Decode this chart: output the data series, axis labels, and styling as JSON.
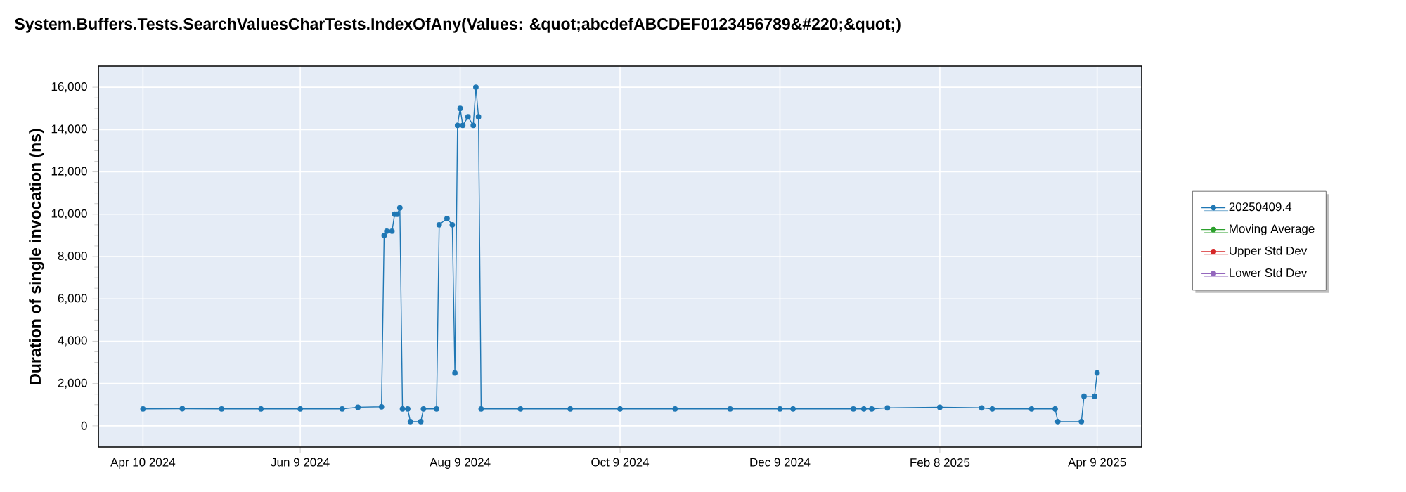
{
  "chart_data": {
    "type": "line",
    "title": "System.Buffers.Tests.SearchValuesCharTests.IndexOfAny(Values: &quot;abcdefABCDEF0123456789&#220;&quot;)",
    "ylabel": "Duration of single invocation (ns)",
    "xlim": [
      "2024-03-24",
      "2025-04-26"
    ],
    "ylim": [
      -1000,
      17000
    ],
    "xticks": [
      {
        "value": "2024-04-10",
        "label": "Apr 10 2024"
      },
      {
        "value": "2024-06-09",
        "label": "Jun 9 2024"
      },
      {
        "value": "2024-08-09",
        "label": "Aug 9 2024"
      },
      {
        "value": "2024-10-09",
        "label": "Oct 9 2024"
      },
      {
        "value": "2024-12-09",
        "label": "Dec 9 2024"
      },
      {
        "value": "2025-02-08",
        "label": "Feb 8 2025"
      },
      {
        "value": "2025-04-09",
        "label": "Apr 9 2025"
      }
    ],
    "yticks": [
      0,
      {
        "value": 2000,
        "label": "2,000"
      },
      {
        "value": 4000,
        "label": "4,000"
      },
      {
        "value": 6000,
        "label": "6,000"
      },
      {
        "value": 8000,
        "label": "8,000"
      },
      {
        "value": 10000,
        "label": "10,000"
      },
      {
        "value": 12000,
        "label": "12,000"
      },
      {
        "value": 14000,
        "label": "14,000"
      },
      {
        "value": 16000,
        "label": "16,000"
      }
    ],
    "grid": true,
    "legend": "right",
    "marker": "circle",
    "line_style": "solid",
    "series": [
      {
        "name": "20250409.4",
        "color": "#1f77b4",
        "x": [
          "2024-04-10",
          "2024-04-25",
          "2024-05-10",
          "2024-05-25",
          "2024-06-09",
          "2024-06-25",
          "2024-07-01",
          "2024-07-10",
          "2024-07-11",
          "2024-07-12",
          "2024-07-14",
          "2024-07-15",
          "2024-07-16",
          "2024-07-17",
          "2024-07-18",
          "2024-07-20",
          "2024-07-21",
          "2024-07-25",
          "2024-07-26",
          "2024-07-31",
          "2024-08-01",
          "2024-08-04",
          "2024-08-06",
          "2024-08-07",
          "2024-08-08",
          "2024-08-09",
          "2024-08-10",
          "2024-08-12",
          "2024-08-14",
          "2024-08-15",
          "2024-08-16",
          "2024-08-17",
          "2024-09-01",
          "2024-09-20",
          "2024-10-09",
          "2024-10-30",
          "2024-11-20",
          "2024-12-09",
          "2024-12-14",
          "2025-01-06",
          "2025-01-10",
          "2025-01-13",
          "2025-01-19",
          "2025-02-08",
          "2025-02-24",
          "2025-02-28",
          "2025-03-15",
          "2025-03-24",
          "2025-03-25",
          "2025-04-03",
          "2025-04-04",
          "2025-04-08",
          "2025-04-09"
        ],
        "values": [
          800,
          810,
          800,
          800,
          800,
          800,
          880,
          900,
          9000,
          9200,
          9200,
          10000,
          10000,
          10300,
          800,
          800,
          200,
          200,
          800,
          800,
          9500,
          9800,
          9500,
          2500,
          14200,
          15000,
          14200,
          14600,
          14200,
          16000,
          14600,
          800,
          800,
          800,
          800,
          800,
          800,
          800,
          800,
          800,
          800,
          800,
          850,
          880,
          850,
          800,
          800,
          800,
          200,
          200,
          1400,
          1400,
          2500
        ]
      },
      {
        "name": "Moving Average",
        "color": "#2ca02c"
      },
      {
        "name": "Upper Std Dev",
        "color": "#d62728"
      },
      {
        "name": "Lower Std Dev",
        "color": "#9467bd"
      }
    ]
  }
}
